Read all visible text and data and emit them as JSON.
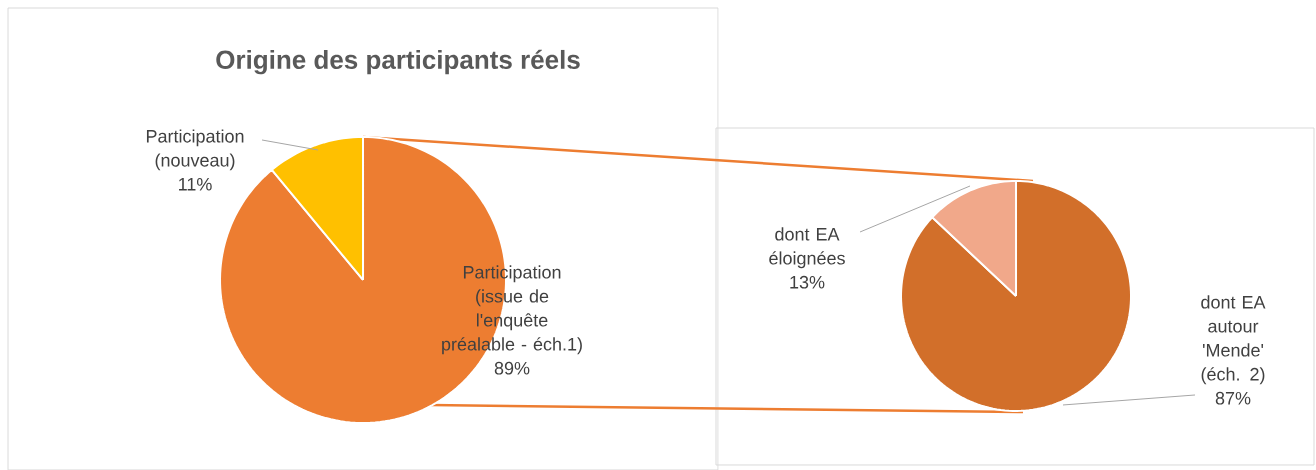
{
  "chart_data": [
    {
      "type": "pie",
      "title": "Origine des participants réels",
      "categories": [
        "Participation (issue de l'enquête préalable - éch.1)",
        "Participation (nouveau)"
      ],
      "values": [
        89,
        11
      ],
      "colors": [
        "#ed7d31",
        "#ffc000"
      ],
      "value_labels": [
        "89%",
        "11%"
      ]
    },
    {
      "type": "pie",
      "categories": [
        "dont EA autour 'Mende' (éch. 2)",
        "dont EA éloignées"
      ],
      "values": [
        87,
        13
      ],
      "colors": [
        "#d26f2a",
        "#f1a88a"
      ],
      "value_labels": [
        "87%",
        "13%"
      ]
    }
  ]
}
